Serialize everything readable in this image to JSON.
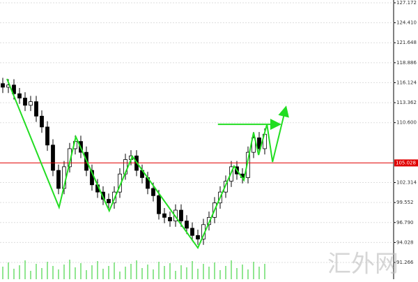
{
  "chart_data": {
    "type": "candlestick",
    "ylim": [
      88.95,
      127.558
    ],
    "xlim": [
      -0.5,
      70.125
    ],
    "yticks": [
      127.172,
      {
        "value": 124.41,
        "label": "124.410"
      },
      121.648,
      118.886,
      116.124,
      113.362,
      {
        "value": 110.6,
        "label": "110.600"
      },
      102.314,
      99.552,
      {
        "value": 96.79,
        "label": "96.790"
      },
      94.028,
      91.266
    ],
    "grid": true,
    "up_color": "#ffffff",
    "down_color": "#000000",
    "open": [
      116.0,
      115.5,
      115.8,
      114.6,
      114.0,
      113.0,
      113.5,
      111.5,
      110.0,
      107.5,
      104.0,
      101.5,
      104.5,
      107.0,
      108.0,
      106.5,
      104.0,
      102.0,
      101.0,
      100.0,
      99.5,
      101.0,
      103.5,
      105.5,
      106.0,
      104.0,
      103.0,
      101.5,
      100.5,
      98.0,
      97.5,
      97.0,
      98.5,
      97.0,
      96.0,
      95.0,
      94.5,
      96.5,
      97.5,
      99.5,
      101.0,
      102.5,
      104.5,
      103.5,
      103.0,
      106.5,
      108.5,
      107.0
    ],
    "high": [
      116.8,
      116.6,
      116.6,
      115.4,
      114.8,
      114.3,
      114.3,
      112.3,
      110.8,
      108.3,
      104.8,
      105.3,
      107.8,
      108.8,
      108.8,
      107.3,
      104.8,
      102.8,
      101.8,
      100.8,
      101.8,
      104.3,
      106.3,
      106.8,
      106.8,
      104.8,
      103.8,
      102.3,
      101.3,
      98.8,
      98.3,
      99.3,
      99.3,
      97.8,
      96.8,
      95.8,
      97.3,
      98.3,
      100.3,
      101.8,
      103.3,
      105.3,
      105.3,
      104.3,
      107.3,
      109.3,
      109.3,
      109.8
    ],
    "low": [
      114.7,
      114.7,
      113.8,
      113.2,
      112.2,
      112.2,
      110.7,
      109.2,
      106.7,
      103.2,
      100.7,
      100.7,
      103.7,
      106.2,
      105.7,
      103.2,
      101.2,
      100.2,
      99.2,
      98.7,
      98.7,
      100.2,
      102.7,
      104.7,
      103.2,
      102.2,
      100.7,
      99.7,
      97.2,
      96.7,
      96.2,
      96.2,
      96.2,
      95.2,
      94.2,
      93.7,
      93.7,
      95.7,
      96.7,
      98.7,
      100.2,
      101.7,
      102.7,
      102.2,
      102.2,
      105.7,
      106.2,
      106.2
    ],
    "close": [
      115.5,
      115.8,
      114.6,
      114.0,
      113.0,
      113.5,
      111.5,
      110.0,
      107.5,
      104.0,
      101.5,
      104.5,
      107.0,
      108.0,
      106.5,
      104.0,
      102.0,
      101.0,
      100.0,
      99.5,
      101.0,
      103.5,
      105.5,
      106.0,
      104.0,
      103.0,
      101.5,
      100.5,
      98.0,
      97.5,
      97.0,
      98.5,
      97.0,
      96.0,
      95.0,
      94.5,
      96.5,
      97.5,
      99.5,
      101.0,
      102.5,
      104.5,
      103.5,
      103.0,
      106.5,
      108.5,
      107.0,
      109.0
    ],
    "volume": {
      "color": "#22cc22",
      "values": [
        18,
        24,
        15,
        20,
        27,
        12,
        22,
        16,
        25,
        19,
        14,
        21,
        28,
        17,
        23,
        13,
        20,
        26,
        15,
        19,
        24,
        11,
        18,
        22,
        27,
        16,
        21,
        14,
        25,
        19,
        23,
        12,
        20,
        17,
        26,
        15,
        22,
        18,
        24,
        13,
        19,
        27,
        16,
        21,
        14,
        25,
        18,
        22
      ]
    },
    "price_line": {
      "value": 105.028,
      "color": "#e00000"
    },
    "trend_lines": [
      {
        "color": "#22dd22",
        "x": [
          0.75,
          10.1,
          13.1,
          19.1,
          23.25,
          35,
          41.5,
          43.25,
          45,
          45.9,
          47.4,
          48.4,
          50.75
        ],
        "y": [
          116.65,
          98.89,
          108.64,
          98.41,
          105.93,
          93.29,
          104.58,
          102.65,
          109.22,
          106.13,
          110.37,
          105.17,
          112.59
        ]
      },
      {
        "color": "#22dd22",
        "x": [
          38.6,
          49.5
        ],
        "y": [
          110.37,
          110.37
        ]
      }
    ],
    "watermark": "汇外网"
  }
}
